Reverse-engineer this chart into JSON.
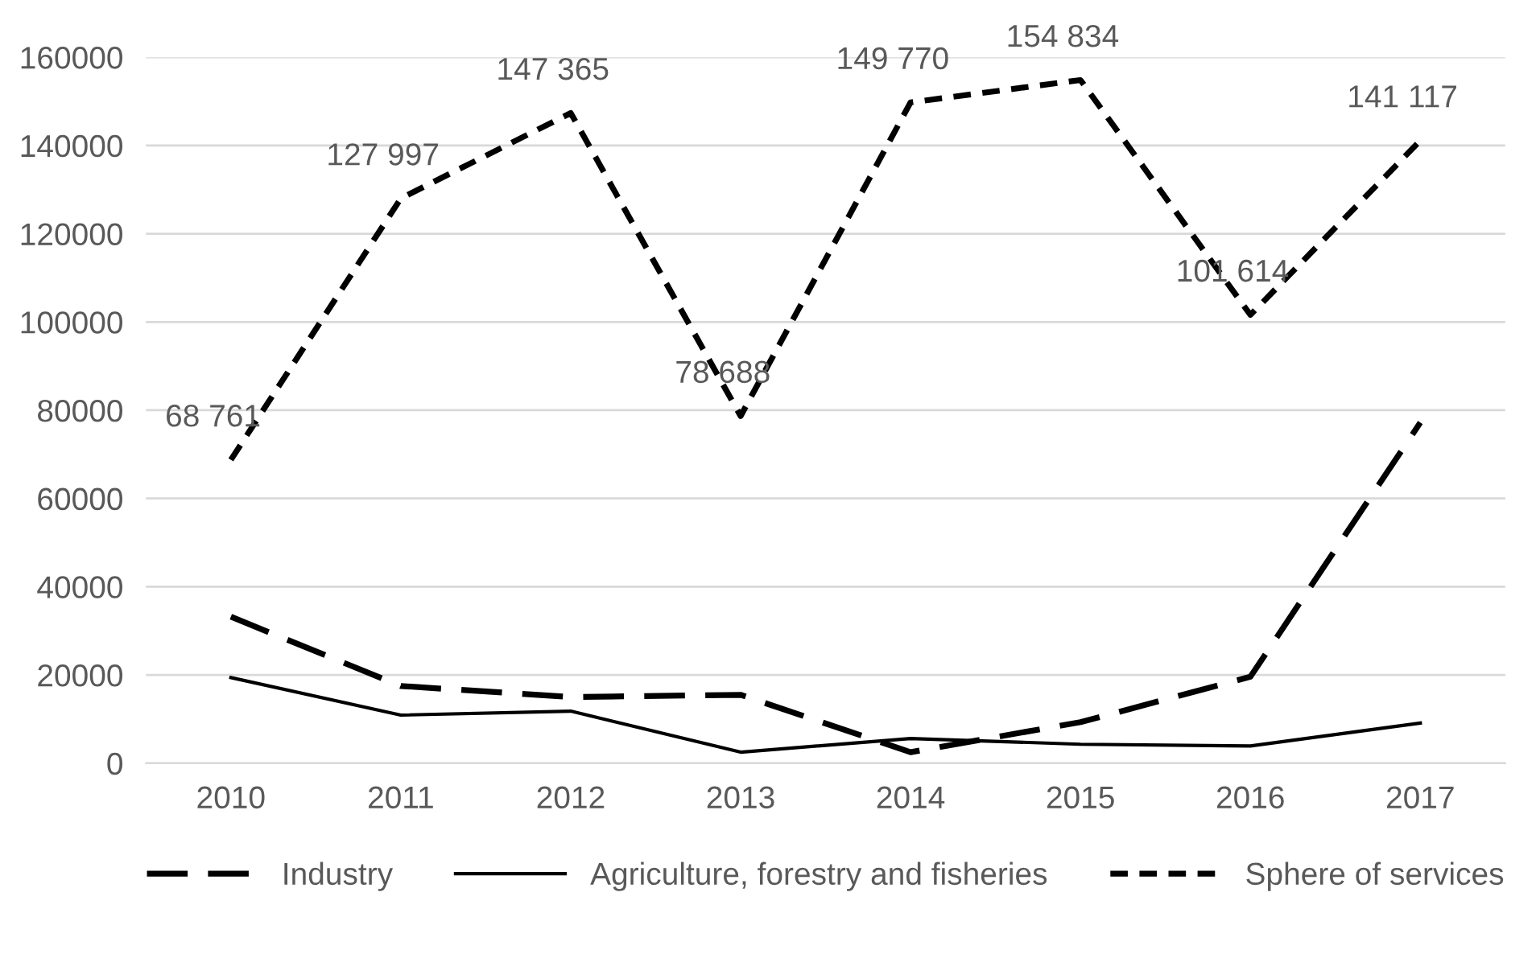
{
  "chart_data": {
    "type": "line",
    "categories": [
      "2010",
      "2011",
      "2012",
      "2013",
      "2014",
      "2015",
      "2016",
      "2017"
    ],
    "series": [
      {
        "name": "Industry",
        "color": "#000000",
        "line_style": "dashed",
        "values": [
          33200,
          17500,
          15000,
          15500,
          2500,
          9300,
          19600,
          77200
        ]
      },
      {
        "name": "Agriculture, forestry and fisheries",
        "color": "#000000",
        "line_style": "solid",
        "values": [
          19400,
          10900,
          11800,
          2500,
          5600,
          4300,
          3900,
          9100
        ]
      },
      {
        "name": "Sphere of services",
        "color": "#000000",
        "line_style": "dotted",
        "values": [
          68761,
          127997,
          147365,
          78688,
          149770,
          154834,
          101614,
          141117
        ],
        "value_labels": [
          "68 761",
          "127 997",
          "147 365",
          "78 688",
          "149 770",
          "154 834",
          "101 614",
          "141 117"
        ]
      }
    ],
    "ylim": [
      0,
      160000
    ],
    "yticks": [
      0,
      20000,
      40000,
      60000,
      80000,
      100000,
      120000,
      140000,
      160000
    ],
    "grid": "y",
    "legend": "bottom",
    "marker": "none"
  }
}
